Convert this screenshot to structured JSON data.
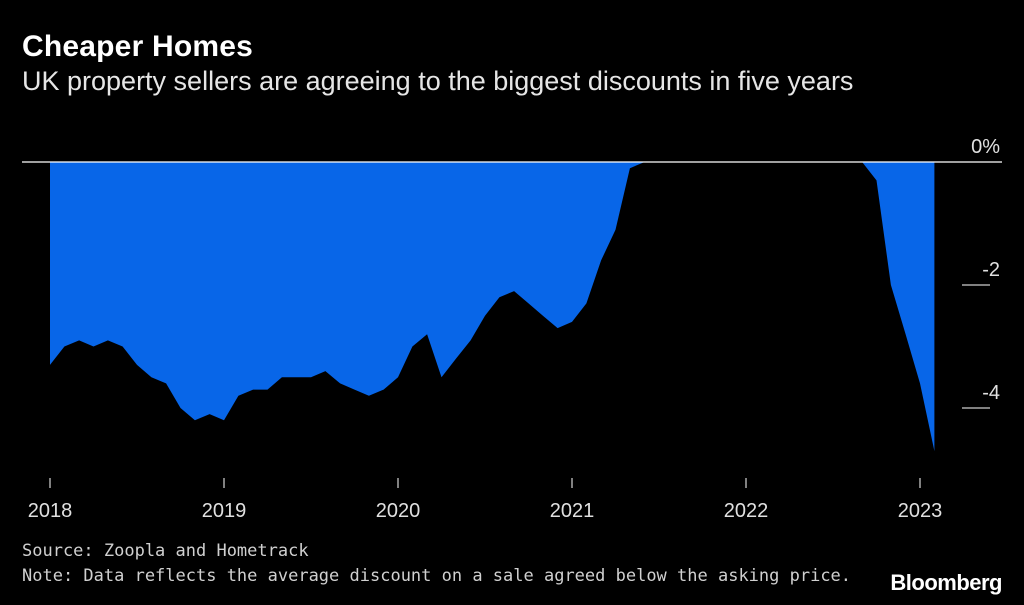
{
  "title": "Cheaper Homes",
  "subtitle": "UK property sellers are agreeing to the biggest discounts in five years",
  "source": "Source: Zoopla and Hometrack",
  "note": "Note: Data reflects the average discount on a sale agreed below the asking price.",
  "logo": "Bloomberg",
  "colors": {
    "background": "#000000",
    "area": "#0866e8",
    "text": "#ffffff",
    "axis": "#ffffff"
  },
  "chart_data": {
    "type": "area",
    "title": "Cheaper Homes",
    "subtitle": "UK property sellers are agreeing to the biggest discounts in five years",
    "xlabel": "",
    "ylabel": "",
    "x_ticks": [
      2018,
      2019,
      2020,
      2021,
      2022,
      2023
    ],
    "y_ticks": [
      {
        "value": 0,
        "label": "0%"
      },
      {
        "value": -2,
        "label": "-2"
      },
      {
        "value": -4,
        "label": "-4"
      }
    ],
    "xlim": [
      2018,
      2023.12
    ],
    "ylim": [
      -4.7,
      0
    ],
    "y_axis_position": "right",
    "grid": false,
    "x": [
      2018.0,
      2018.083,
      2018.167,
      2018.25,
      2018.333,
      2018.417,
      2018.5,
      2018.583,
      2018.667,
      2018.75,
      2018.833,
      2018.917,
      2019.0,
      2019.083,
      2019.167,
      2019.25,
      2019.333,
      2019.417,
      2019.5,
      2019.583,
      2019.667,
      2019.75,
      2019.833,
      2019.917,
      2020.0,
      2020.083,
      2020.167,
      2020.25,
      2020.333,
      2020.417,
      2020.5,
      2020.583,
      2020.667,
      2020.75,
      2020.833,
      2020.917,
      2021.0,
      2021.083,
      2021.167,
      2021.25,
      2021.333,
      2021.417,
      2021.5,
      2021.583,
      2021.667,
      2021.75,
      2021.833,
      2021.917,
      2022.0,
      2022.083,
      2022.167,
      2022.25,
      2022.333,
      2022.417,
      2022.5,
      2022.583,
      2022.667,
      2022.75,
      2022.833,
      2022.917,
      2023.0,
      2023.083
    ],
    "values": [
      -3.3,
      -3.0,
      -2.9,
      -3.0,
      -2.9,
      -3.0,
      -3.3,
      -3.5,
      -3.6,
      -4.0,
      -4.2,
      -4.1,
      -4.2,
      -3.8,
      -3.7,
      -3.7,
      -3.5,
      -3.5,
      -3.5,
      -3.4,
      -3.6,
      -3.7,
      -3.8,
      -3.7,
      -3.5,
      -3.0,
      -2.8,
      -3.5,
      -3.2,
      -2.9,
      -2.5,
      -2.2,
      -2.1,
      -2.3,
      -2.5,
      -2.7,
      -2.6,
      -2.3,
      -1.6,
      -1.1,
      -0.1,
      0.0,
      0.0,
      0.0,
      0.0,
      0.0,
      0.0,
      0.0,
      0.0,
      0.0,
      0.0,
      0.0,
      0.0,
      0.0,
      0.0,
      0.0,
      0.0,
      -0.3,
      -2.0,
      -2.8,
      -3.6,
      -4.7
    ]
  }
}
